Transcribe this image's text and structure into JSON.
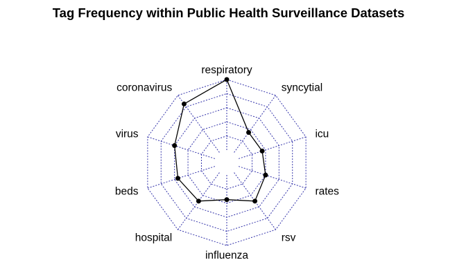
{
  "chart_data": {
    "type": "radar",
    "title": "Tag Frequency within Public Health Surveillance Datasets",
    "axes": [
      "respiratory",
      "syncytial",
      "icu",
      "rates",
      "rsv",
      "influenza",
      "hospital",
      "beds",
      "virus",
      "coronavirus"
    ],
    "series": [
      {
        "values": [
          1.0,
          0.35,
          0.35,
          0.4,
          0.5,
          0.35,
          0.5,
          0.55,
          0.6,
          0.85
        ]
      }
    ],
    "range": [
      0,
      1
    ],
    "grid_rings": 5,
    "colors": {
      "grid": "#3333aa",
      "series": "#000000"
    }
  }
}
